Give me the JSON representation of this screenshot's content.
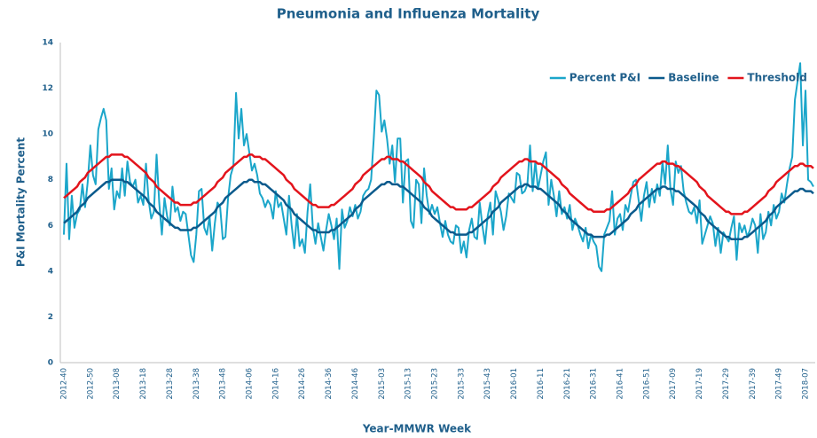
{
  "chart_data": {
    "type": "line",
    "title": "Pneumonia and Influenza Mortality",
    "x_label": "Year-MMWR Week",
    "y_label": "P&I Mortality Percent",
    "categories": [
      "2012-40",
      null,
      null,
      null,
      null,
      null,
      null,
      null,
      null,
      null,
      "2012-50",
      null,
      null,
      null,
      null,
      null,
      null,
      null,
      null,
      null,
      "2013-08",
      null,
      null,
      null,
      null,
      null,
      null,
      null,
      null,
      null,
      "2013-18",
      null,
      null,
      null,
      null,
      null,
      null,
      null,
      null,
      null,
      "2013-28",
      null,
      null,
      null,
      null,
      null,
      null,
      null,
      null,
      null,
      "2013-38",
      null,
      null,
      null,
      null,
      null,
      null,
      null,
      null,
      null,
      "2013-48",
      null,
      null,
      null,
      null,
      null,
      null,
      null,
      null,
      null,
      "2014-06",
      null,
      null,
      null,
      null,
      null,
      null,
      null,
      null,
      null,
      "2014-16",
      null,
      null,
      null,
      null,
      null,
      null,
      null,
      null,
      null,
      "2014-26",
      null,
      null,
      null,
      null,
      null,
      null,
      null,
      null,
      null,
      "2014-36",
      null,
      null,
      null,
      null,
      null,
      null,
      null,
      null,
      null,
      "2014-46",
      null,
      null,
      null,
      null,
      null,
      null,
      null,
      null,
      null,
      "2015-03",
      null,
      null,
      null,
      null,
      null,
      null,
      null,
      null,
      null,
      "2015-13",
      null,
      null,
      null,
      null,
      null,
      null,
      null,
      null,
      null,
      "2015-23",
      null,
      null,
      null,
      null,
      null,
      null,
      null,
      null,
      null,
      "2015-33",
      null,
      null,
      null,
      null,
      null,
      null,
      null,
      null,
      null,
      "2015-43",
      null,
      null,
      null,
      null,
      null,
      null,
      null,
      null,
      null,
      "2016-01",
      null,
      null,
      null,
      null,
      null,
      null,
      null,
      null,
      null,
      "2016-11",
      null,
      null,
      null,
      null,
      null,
      null,
      null,
      null,
      null,
      "2016-21",
      null,
      null,
      null,
      null,
      null,
      null,
      null,
      null,
      null,
      "2016-31",
      null,
      null,
      null,
      null,
      null,
      null,
      null,
      null,
      null,
      "2016-41",
      null,
      null,
      null,
      null,
      null,
      null,
      null,
      null,
      null,
      "2016-51",
      null,
      null,
      null,
      null,
      null,
      null,
      null,
      null,
      null,
      "2017-09",
      null,
      null,
      null,
      null,
      null,
      null,
      null,
      null,
      null,
      "2017-19",
      null,
      null,
      null,
      null,
      null,
      null,
      null,
      null,
      null,
      "2017-29",
      null,
      null,
      null,
      null,
      null,
      null,
      null,
      null,
      null,
      "2017-39",
      null,
      null,
      null,
      null,
      null,
      null,
      null,
      null,
      null,
      "2017-49",
      null,
      null,
      null,
      null,
      null,
      null,
      null,
      null,
      null,
      "2018-07",
      null,
      null,
      null
    ],
    "series": [
      {
        "name": "Percent P&I",
        "color": "#1ba6ca",
        "width": 2,
        "values": [
          5.6,
          8.7,
          5.4,
          7.3,
          5.9,
          6.5,
          6.7,
          7.8,
          6.8,
          7.9,
          9.5,
          8.2,
          7.8,
          10.2,
          10.7,
          11.1,
          10.6,
          7.6,
          8.5,
          6.7,
          7.5,
          7.2,
          8.5,
          7.3,
          8.8,
          7.9,
          7.7,
          8.0,
          7.0,
          7.3,
          6.9,
          8.7,
          7.1,
          6.3,
          6.6,
          9.1,
          7.0,
          5.6,
          7.2,
          6.4,
          6.0,
          7.7,
          6.6,
          6.8,
          6.2,
          6.6,
          6.5,
          5.6,
          4.7,
          4.4,
          5.6,
          7.5,
          7.6,
          5.9,
          5.6,
          6.4,
          4.9,
          6.1,
          7.0,
          6.8,
          5.4,
          5.5,
          7.2,
          8.2,
          8.6,
          11.8,
          9.8,
          11.1,
          9.5,
          10.0,
          9.2,
          8.4,
          8.7,
          8.2,
          7.4,
          7.2,
          6.8,
          7.1,
          6.9,
          6.3,
          7.5,
          6.8,
          7.0,
          6.3,
          5.6,
          7.3,
          6.0,
          5.0,
          6.5,
          5.1,
          5.4,
          4.8,
          6.6,
          7.8,
          5.9,
          5.2,
          6.1,
          5.5,
          4.9,
          5.8,
          6.5,
          6.0,
          5.4,
          6.3,
          4.1,
          6.7,
          5.9,
          6.2,
          6.8,
          6.4,
          6.9,
          6.3,
          6.6,
          7.3,
          7.5,
          7.6,
          8.0,
          9.8,
          11.9,
          11.7,
          10.1,
          10.6,
          9.8,
          8.7,
          9.5,
          7.9,
          9.8,
          9.8,
          7.0,
          8.8,
          8.9,
          6.2,
          5.9,
          8.0,
          7.8,
          6.1,
          8.5,
          7.3,
          6.5,
          6.9,
          6.5,
          6.8,
          6.1,
          5.5,
          6.2,
          5.6,
          5.3,
          5.2,
          6.0,
          5.9,
          4.8,
          5.3,
          4.6,
          5.8,
          6.3,
          5.5,
          5.4,
          7.0,
          6.0,
          5.2,
          6.4,
          7.0,
          5.6,
          7.5,
          7.1,
          6.6,
          5.8,
          6.4,
          7.4,
          7.2,
          7.0,
          8.3,
          8.2,
          7.4,
          7.5,
          7.8,
          9.5,
          7.5,
          8.8,
          7.6,
          8.2,
          8.8,
          9.2,
          6.9,
          8.0,
          7.3,
          6.4,
          7.5,
          6.5,
          6.8,
          6.3,
          6.9,
          5.8,
          6.3,
          6.0,
          5.6,
          5.3,
          5.9,
          5.0,
          5.6,
          5.3,
          5.1,
          4.2,
          4.0,
          5.6,
          5.9,
          6.2,
          7.5,
          5.6,
          6.3,
          6.5,
          5.8,
          6.9,
          6.6,
          7.3,
          7.9,
          8.0,
          7.1,
          6.2,
          7.3,
          7.9,
          6.8,
          7.6,
          7.0,
          7.8,
          7.3,
          8.8,
          7.8,
          9.5,
          7.6,
          6.9,
          8.8,
          8.3,
          8.6,
          7.5,
          7.0,
          6.6,
          6.5,
          6.8,
          6.1,
          7.1,
          5.2,
          5.6,
          6.0,
          6.4,
          6.1,
          5.1,
          5.9,
          4.8,
          5.7,
          5.5,
          5.3,
          5.9,
          6.4,
          4.5,
          6.1,
          5.7,
          6.0,
          5.5,
          5.8,
          6.3,
          6.0,
          4.8,
          6.5,
          5.4,
          5.7,
          6.6,
          6.0,
          6.9,
          6.3,
          6.6,
          7.4,
          7.0,
          7.8,
          8.5,
          9.0,
          11.5,
          12.3,
          13.1,
          9.5,
          11.9,
          8.0,
          7.9,
          7.7
        ]
      },
      {
        "name": "Baseline",
        "color": "#0b5a8c",
        "width": 2.5,
        "values": [
          6.1,
          6.2,
          6.3,
          6.4,
          6.5,
          6.6,
          6.8,
          6.9,
          7.0,
          7.2,
          7.3,
          7.4,
          7.5,
          7.6,
          7.7,
          7.8,
          7.9,
          7.9,
          8.0,
          8.0,
          8.0,
          8.0,
          8.0,
          7.9,
          7.9,
          7.8,
          7.7,
          7.6,
          7.5,
          7.4,
          7.3,
          7.2,
          7.0,
          6.9,
          6.8,
          6.6,
          6.5,
          6.4,
          6.3,
          6.2,
          6.1,
          6.0,
          5.9,
          5.9,
          5.8,
          5.8,
          5.8,
          5.8,
          5.8,
          5.9,
          5.9,
          6.0,
          6.1,
          6.2,
          6.3,
          6.4,
          6.5,
          6.6,
          6.8,
          6.9,
          7.0,
          7.2,
          7.3,
          7.4,
          7.5,
          7.6,
          7.7,
          7.8,
          7.9,
          7.9,
          8.0,
          8.0,
          7.9,
          7.9,
          7.9,
          7.8,
          7.8,
          7.7,
          7.6,
          7.5,
          7.4,
          7.3,
          7.2,
          7.1,
          6.9,
          6.8,
          6.7,
          6.5,
          6.4,
          6.3,
          6.2,
          6.1,
          6.0,
          5.9,
          5.8,
          5.8,
          5.7,
          5.7,
          5.7,
          5.7,
          5.7,
          5.8,
          5.8,
          5.9,
          6.0,
          6.1,
          6.2,
          6.3,
          6.4,
          6.5,
          6.7,
          6.8,
          6.9,
          7.1,
          7.2,
          7.3,
          7.4,
          7.5,
          7.6,
          7.7,
          7.8,
          7.8,
          7.9,
          7.9,
          7.8,
          7.8,
          7.8,
          7.7,
          7.7,
          7.6,
          7.5,
          7.4,
          7.3,
          7.2,
          7.1,
          7.0,
          6.8,
          6.7,
          6.6,
          6.4,
          6.3,
          6.2,
          6.1,
          6.0,
          5.9,
          5.8,
          5.7,
          5.7,
          5.6,
          5.6,
          5.6,
          5.6,
          5.6,
          5.7,
          5.7,
          5.8,
          5.9,
          6.0,
          6.1,
          6.2,
          6.3,
          6.4,
          6.6,
          6.7,
          6.8,
          7.0,
          7.1,
          7.2,
          7.3,
          7.4,
          7.5,
          7.6,
          7.7,
          7.7,
          7.8,
          7.8,
          7.7,
          7.7,
          7.7,
          7.6,
          7.6,
          7.5,
          7.4,
          7.3,
          7.2,
          7.1,
          7.0,
          6.9,
          6.7,
          6.6,
          6.5,
          6.3,
          6.2,
          6.1,
          6.0,
          5.9,
          5.8,
          5.7,
          5.6,
          5.6,
          5.5,
          5.5,
          5.5,
          5.5,
          5.5,
          5.6,
          5.6,
          5.7,
          5.8,
          5.9,
          6.0,
          6.1,
          6.2,
          6.3,
          6.5,
          6.6,
          6.7,
          6.9,
          7.0,
          7.1,
          7.2,
          7.3,
          7.4,
          7.5,
          7.6,
          7.6,
          7.7,
          7.7,
          7.6,
          7.6,
          7.6,
          7.5,
          7.5,
          7.4,
          7.3,
          7.2,
          7.1,
          7.0,
          6.9,
          6.8,
          6.6,
          6.5,
          6.4,
          6.2,
          6.1,
          6.0,
          5.9,
          5.8,
          5.7,
          5.6,
          5.5,
          5.5,
          5.4,
          5.4,
          5.4,
          5.4,
          5.4,
          5.5,
          5.5,
          5.6,
          5.7,
          5.8,
          5.9,
          6.0,
          6.1,
          6.2,
          6.4,
          6.5,
          6.6,
          6.8,
          6.9,
          7.0,
          7.1,
          7.2,
          7.3,
          7.4,
          7.5,
          7.5,
          7.6,
          7.6,
          7.5,
          7.5,
          7.5,
          7.4
        ]
      },
      {
        "name": "Threshold",
        "color": "#e3141c",
        "width": 2.5,
        "values": [
          7.2,
          7.3,
          7.4,
          7.5,
          7.6,
          7.7,
          7.9,
          8.0,
          8.1,
          8.3,
          8.4,
          8.5,
          8.6,
          8.7,
          8.8,
          8.9,
          9.0,
          9.0,
          9.1,
          9.1,
          9.1,
          9.1,
          9.1,
          9.0,
          9.0,
          8.9,
          8.8,
          8.7,
          8.6,
          8.5,
          8.4,
          8.3,
          8.1,
          8.0,
          7.9,
          7.7,
          7.6,
          7.5,
          7.4,
          7.3,
          7.2,
          7.1,
          7.0,
          7.0,
          6.9,
          6.9,
          6.9,
          6.9,
          6.9,
          7.0,
          7.0,
          7.1,
          7.2,
          7.3,
          7.4,
          7.5,
          7.6,
          7.7,
          7.9,
          8.0,
          8.1,
          8.3,
          8.4,
          8.5,
          8.6,
          8.7,
          8.8,
          8.9,
          9.0,
          9.0,
          9.1,
          9.1,
          9.0,
          9.0,
          9.0,
          8.9,
          8.9,
          8.8,
          8.7,
          8.6,
          8.5,
          8.4,
          8.3,
          8.2,
          8.0,
          7.9,
          7.8,
          7.6,
          7.5,
          7.4,
          7.3,
          7.2,
          7.1,
          7.0,
          6.9,
          6.9,
          6.8,
          6.8,
          6.8,
          6.8,
          6.8,
          6.9,
          6.9,
          7.0,
          7.1,
          7.2,
          7.3,
          7.4,
          7.5,
          7.6,
          7.8,
          7.9,
          8.0,
          8.2,
          8.3,
          8.4,
          8.5,
          8.6,
          8.7,
          8.8,
          8.9,
          8.9,
          9.0,
          9.0,
          8.9,
          8.9,
          8.9,
          8.8,
          8.8,
          8.7,
          8.6,
          8.5,
          8.4,
          8.3,
          8.2,
          8.1,
          7.9,
          7.8,
          7.7,
          7.5,
          7.4,
          7.3,
          7.2,
          7.1,
          7.0,
          6.9,
          6.8,
          6.8,
          6.7,
          6.7,
          6.7,
          6.7,
          6.7,
          6.8,
          6.8,
          6.9,
          7.0,
          7.1,
          7.2,
          7.3,
          7.4,
          7.5,
          7.7,
          7.8,
          7.9,
          8.1,
          8.2,
          8.3,
          8.4,
          8.5,
          8.6,
          8.7,
          8.8,
          8.8,
          8.9,
          8.9,
          8.8,
          8.8,
          8.8,
          8.7,
          8.7,
          8.6,
          8.5,
          8.4,
          8.3,
          8.2,
          8.1,
          8.0,
          7.8,
          7.7,
          7.6,
          7.4,
          7.3,
          7.2,
          7.1,
          7.0,
          6.9,
          6.8,
          6.7,
          6.7,
          6.6,
          6.6,
          6.6,
          6.6,
          6.6,
          6.7,
          6.7,
          6.8,
          6.9,
          7.0,
          7.1,
          7.2,
          7.3,
          7.4,
          7.6,
          7.7,
          7.8,
          8.0,
          8.1,
          8.2,
          8.3,
          8.4,
          8.5,
          8.6,
          8.7,
          8.7,
          8.8,
          8.8,
          8.7,
          8.7,
          8.7,
          8.6,
          8.6,
          8.5,
          8.4,
          8.3,
          8.2,
          8.1,
          8.0,
          7.9,
          7.7,
          7.6,
          7.5,
          7.3,
          7.2,
          7.1,
          7.0,
          6.9,
          6.8,
          6.7,
          6.6,
          6.6,
          6.5,
          6.5,
          6.5,
          6.5,
          6.5,
          6.6,
          6.6,
          6.7,
          6.8,
          6.9,
          7.0,
          7.1,
          7.2,
          7.3,
          7.5,
          7.6,
          7.7,
          7.9,
          8.0,
          8.1,
          8.2,
          8.3,
          8.4,
          8.5,
          8.6,
          8.6,
          8.7,
          8.7,
          8.6,
          8.6,
          8.6,
          8.5
        ]
      }
    ],
    "ylim": [
      0,
      14
    ],
    "yticks": [
      0,
      2,
      4,
      6,
      8,
      10,
      12,
      14
    ],
    "grid": false,
    "legend": "upper right"
  }
}
